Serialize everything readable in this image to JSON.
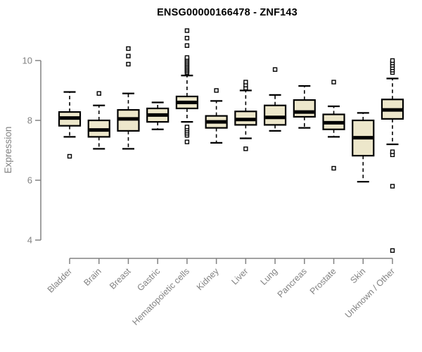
{
  "title": "ENSG00000166478 - ZNF143",
  "colors": {
    "background": "#ffffff",
    "box_fill": "#EDE7CB",
    "box_border": "#000000",
    "median": "#000000",
    "whisker": "#000000",
    "outlier_stroke": "#000000",
    "axis": "#828282",
    "tick_label": "#828282",
    "title_color": "#000000"
  },
  "chart_data": {
    "type": "boxplot",
    "title": "ENSG00000166478 - ZNF143",
    "xlabel": "",
    "ylabel": "Expression",
    "ylim": [
      4,
      10
    ],
    "yticks": [
      4,
      6,
      8,
      10
    ],
    "grid": false,
    "legend": "none",
    "categories": [
      "Bladder",
      "Brain",
      "Breast",
      "Gastric",
      "Hematopoietic cells",
      "Kidney",
      "Liver",
      "Lung",
      "Pancreas",
      "Prostate",
      "Skin",
      "Unknown / Other"
    ],
    "series": [
      {
        "category": "Bladder",
        "whisker_low": 7.45,
        "q1": 7.82,
        "median": 8.08,
        "q3": 8.28,
        "whisker_high": 8.95,
        "outliers": [
          6.8
        ]
      },
      {
        "category": "Brain",
        "whisker_low": 7.05,
        "q1": 7.45,
        "median": 7.68,
        "q3": 8.0,
        "whisker_high": 8.5,
        "outliers": [
          8.9
        ]
      },
      {
        "category": "Breast",
        "whisker_low": 7.05,
        "q1": 7.65,
        "median": 8.05,
        "q3": 8.35,
        "whisker_high": 8.9,
        "outliers": [
          9.88,
          10.15,
          10.4
        ]
      },
      {
        "category": "Gastric",
        "whisker_low": 7.7,
        "q1": 7.95,
        "median": 8.18,
        "q3": 8.4,
        "whisker_high": 8.6,
        "outliers": []
      },
      {
        "category": "Hematopoietic cells",
        "whisker_low": 7.95,
        "q1": 8.4,
        "median": 8.6,
        "q3": 8.8,
        "whisker_high": 9.5,
        "outliers": [
          7.28,
          7.5,
          7.57,
          7.64,
          7.71,
          7.78,
          9.6,
          9.65,
          9.7,
          9.75,
          9.8,
          9.85,
          9.9,
          9.95,
          10.0,
          10.05,
          10.1,
          10.5,
          10.75,
          11.0
        ]
      },
      {
        "category": "Kidney",
        "whisker_low": 7.25,
        "q1": 7.75,
        "median": 7.95,
        "q3": 8.15,
        "whisker_high": 8.65,
        "outliers": [
          9.0
        ]
      },
      {
        "category": "Liver",
        "whisker_low": 7.4,
        "q1": 7.85,
        "median": 8.03,
        "q3": 8.3,
        "whisker_high": 9.0,
        "outliers": [
          7.05,
          9.08,
          9.18,
          9.28
        ]
      },
      {
        "category": "Lung",
        "whisker_low": 7.65,
        "q1": 7.85,
        "median": 8.1,
        "q3": 8.5,
        "whisker_high": 8.85,
        "outliers": [
          9.7
        ]
      },
      {
        "category": "Pancreas",
        "whisker_low": 7.75,
        "q1": 8.12,
        "median": 8.28,
        "q3": 8.68,
        "whisker_high": 9.15,
        "outliers": []
      },
      {
        "category": "Prostate",
        "whisker_low": 7.45,
        "q1": 7.7,
        "median": 7.92,
        "q3": 8.2,
        "whisker_high": 8.47,
        "outliers": [
          6.4,
          9.28
        ]
      },
      {
        "category": "Skin",
        "whisker_low": 5.95,
        "q1": 6.82,
        "median": 7.42,
        "q3": 8.0,
        "whisker_high": 8.25,
        "outliers": []
      },
      {
        "category": "Unknown / Other",
        "whisker_low": 7.2,
        "q1": 8.05,
        "median": 8.35,
        "q3": 8.7,
        "whisker_high": 9.4,
        "outliers": [
          3.65,
          5.8,
          6.85,
          6.95,
          9.6,
          9.68,
          9.76,
          9.84,
          9.92,
          10.0
        ]
      }
    ]
  }
}
